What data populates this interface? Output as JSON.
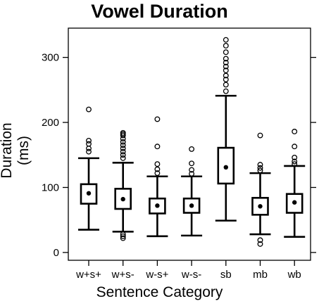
{
  "chart_data": {
    "type": "boxplot",
    "title": "Vowel Duration",
    "xlabel": "Sentence Category",
    "ylabel": "Duration (ms)",
    "ylim": [
      -12,
      345
    ],
    "yticks": [
      0,
      100,
      200,
      300
    ],
    "grid": false,
    "categories": [
      "w+s+",
      "w+s-",
      "w-s+",
      "w-s-",
      "sb",
      "mb",
      "wb"
    ],
    "boxes": [
      {
        "category": "w+s+",
        "whisker_low": 35,
        "q1": 75,
        "median": 90,
        "mean": 91,
        "q3": 105,
        "whisker_high": 145,
        "outliers": [
          155,
          160,
          167,
          172,
          220
        ]
      },
      {
        "category": "w+s-",
        "whisker_low": 32,
        "q1": 67,
        "median": 82,
        "mean": 82,
        "q3": 98,
        "whisker_high": 138,
        "outliers": [
          22,
          25,
          28,
          145,
          150,
          155,
          160,
          165,
          170,
          175,
          180,
          182,
          184
        ]
      },
      {
        "category": "w-s+",
        "whisker_low": 25,
        "q1": 60,
        "median": 72,
        "mean": 72,
        "q3": 83,
        "whisker_high": 117,
        "outliers": [
          122,
          128,
          136,
          163,
          205
        ]
      },
      {
        "category": "w-s-",
        "whisker_low": 26,
        "q1": 61,
        "median": 72,
        "mean": 72,
        "q3": 83,
        "whisker_high": 117,
        "outliers": [
          121,
          127,
          137,
          159
        ]
      },
      {
        "category": "sb",
        "whisker_low": 49,
        "q1": 106,
        "median": 131,
        "mean": 131,
        "q3": 161,
        "whisker_high": 241,
        "outliers": [
          248,
          258,
          266,
          272,
          280,
          286,
          292,
          298,
          308,
          318,
          327
        ]
      },
      {
        "category": "mb",
        "whisker_low": 28,
        "q1": 58,
        "median": 71,
        "mean": 71,
        "q3": 84,
        "whisker_high": 122,
        "outliers": [
          13,
          19,
          126,
          130,
          135,
          180
        ]
      },
      {
        "category": "wb",
        "whisker_low": 24,
        "q1": 61,
        "median": 77,
        "mean": 77,
        "q3": 90,
        "whisker_high": 133,
        "outliers": [
          136,
          140,
          146,
          163,
          186
        ]
      }
    ]
  }
}
